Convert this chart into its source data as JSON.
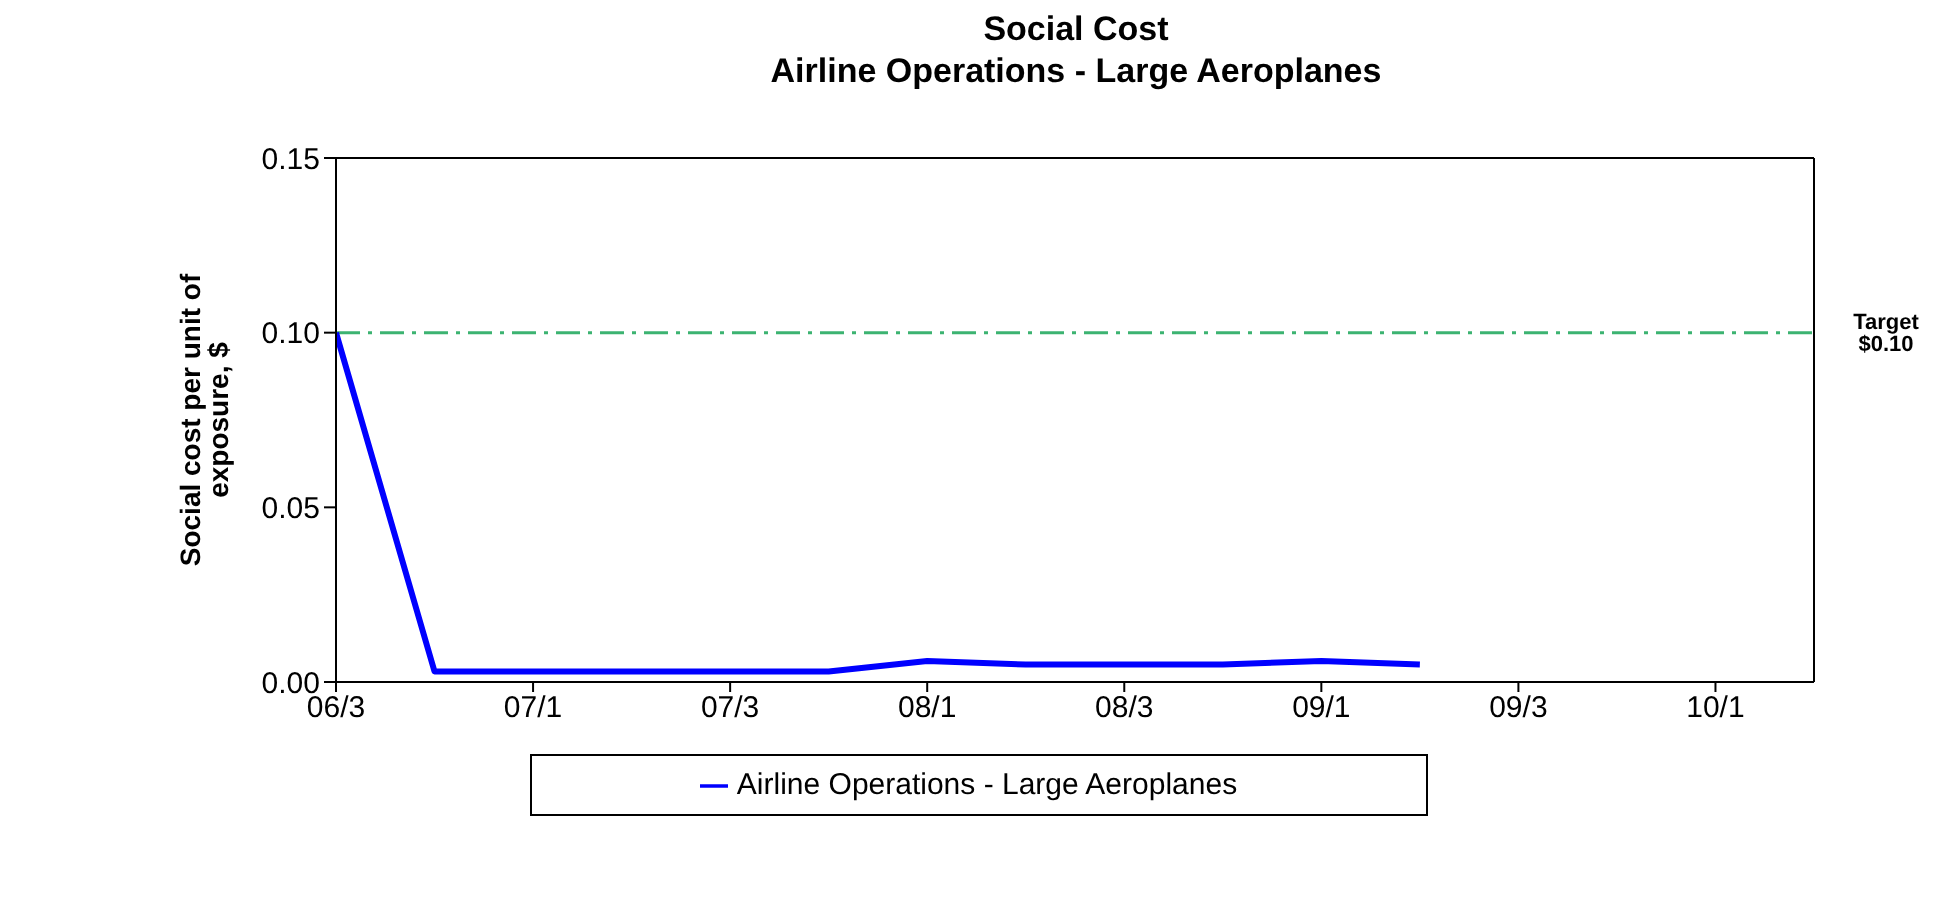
{
  "chart_data": {
    "type": "line",
    "title": "Social Cost\nAirline Operations  - Large  Aeroplanes",
    "ylabel": "Social cost per unit of exposure, $",
    "categories": [
      "06/3",
      null,
      "07/1",
      null,
      "07/3",
      null,
      "08/1",
      null,
      "08/3",
      null,
      "09/1",
      null,
      "09/3",
      null,
      "10/1",
      null
    ],
    "series": [
      {
        "name": "Airline Operations - Large Aeroplanes",
        "color": "#0000ff",
        "values": [
          0.1,
          0.003,
          0.003,
          0.003,
          0.003,
          0.003,
          0.006,
          0.005,
          0.005,
          0.005,
          0.006,
          0.005,
          null,
          null,
          null,
          null
        ]
      }
    ],
    "ylim": [
      0,
      0.15
    ],
    "yticks": [
      {
        "value": 0,
        "label": "0.00"
      },
      {
        "value": 0.05,
        "label": "0.05"
      },
      {
        "value": 0.1,
        "label": "0.10"
      },
      {
        "value": 0.15,
        "label": "0.15"
      }
    ],
    "ref_lines": [
      {
        "axis": "y",
        "value": 0.1,
        "label": "Target $0.10",
        "color": "#3cb371",
        "line_style": "dashdot"
      }
    ],
    "legend": "bottom",
    "grid": false,
    "marker": "none",
    "line_style": "solid"
  }
}
